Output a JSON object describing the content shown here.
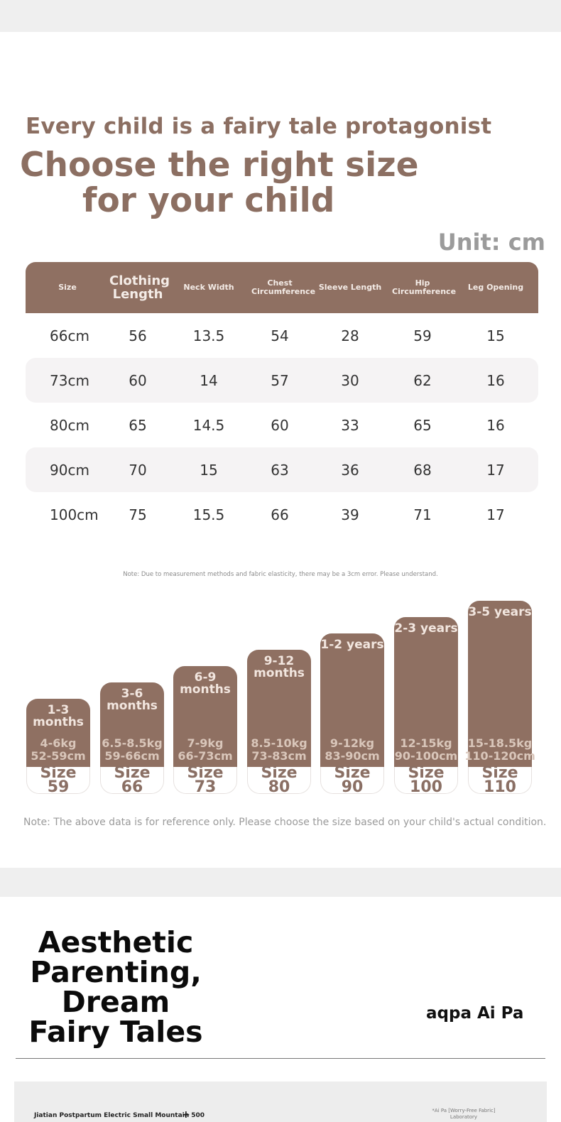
{
  "hero": {
    "tagline": "Every child is a fairy tale protagonist",
    "headline_line1": "Choose the right size",
    "headline_line2": "for your child",
    "unit": "Unit: cm"
  },
  "size_table": {
    "headers": [
      "Size",
      "Clothing Length",
      "Neck Width",
      "Chest Circumference",
      "Sleeve Length",
      "Hip Circumference",
      "Leg Opening"
    ],
    "rows": [
      [
        "66cm",
        "56",
        "13.5",
        "54",
        "28",
        "59",
        "15"
      ],
      [
        "73cm",
        "60",
        "14",
        "57",
        "30",
        "62",
        "16"
      ],
      [
        "80cm",
        "65",
        "14.5",
        "60",
        "33",
        "65",
        "16"
      ],
      [
        "90cm",
        "70",
        "15",
        "63",
        "36",
        "68",
        "17"
      ],
      [
        "100cm",
        "75",
        "15.5",
        "66",
        "39",
        "71",
        "17"
      ]
    ],
    "note": "Note: Due to measurement methods and fabric elasticity, there may be a 3cm error. Please understand."
  },
  "size_chart": {
    "bars": [
      {
        "age": "1-3 months",
        "weight": "4-6kg",
        "height": "52-59cm",
        "size": "Size 59",
        "level": 1
      },
      {
        "age": "3-6 months",
        "weight": "6.5-8.5kg",
        "height": "59-66cm",
        "size": "Size 66",
        "level": 2
      },
      {
        "age": "6-9 months",
        "weight": "7-9kg",
        "height": "66-73cm",
        "size": "Size 73",
        "level": 3
      },
      {
        "age": "9-12 months",
        "weight": "8.5-10kg",
        "height": "73-83cm",
        "size": "Size 80",
        "level": 4
      },
      {
        "age": "1-2 years",
        "weight": "9-12kg",
        "height": "83-90cm",
        "size": "Size 90",
        "level": 5
      },
      {
        "age": "2-3 years",
        "weight": "12-15kg",
        "height": "90-100cm",
        "size": "Size 100",
        "level": 6
      },
      {
        "age": "3-5 years",
        "weight": "15-18.5kg",
        "height": "110-120cm",
        "size": "Size 110",
        "level": 7
      }
    ],
    "note": "Note: The above data is for reference only. Please choose the size based on your child's actual condition."
  },
  "brand_section": {
    "slogan": "Aesthetic Parenting, Dream Fairy Tales",
    "brand": "aqpa Ai Pa"
  },
  "footer": {
    "left_text": "Jiatian Postpartum Electric Small Mountain 500",
    "plus": "+",
    "right_text": "*Ai Pa [Worry-Free Fabric] Laboratory"
  },
  "colors": {
    "accent": "#8f7062",
    "heading": "#8c6f62",
    "muted": "#9a9a9a"
  }
}
